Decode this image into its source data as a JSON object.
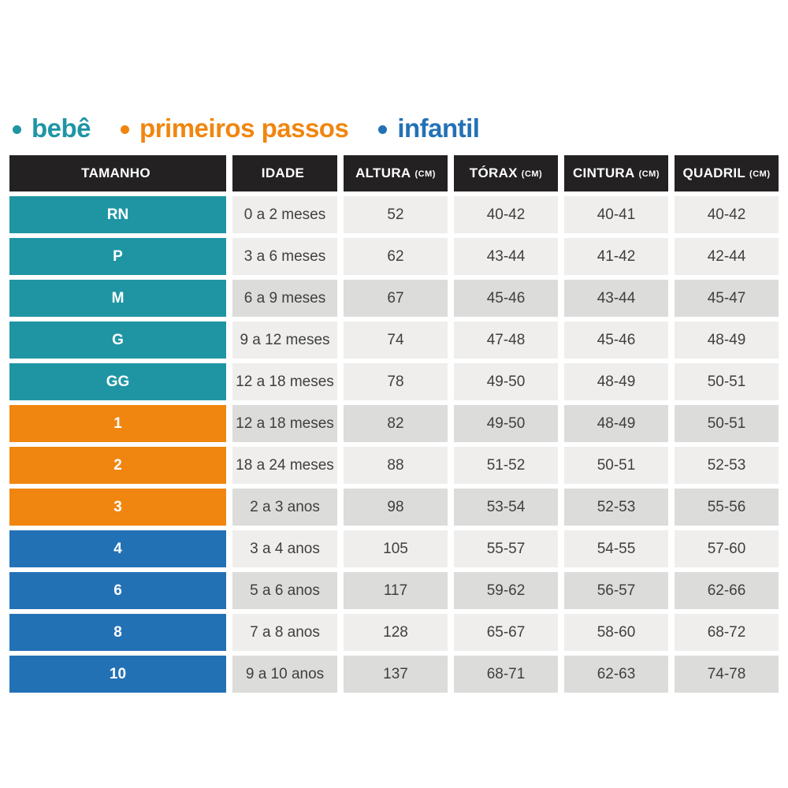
{
  "palette": {
    "bebe": "#1f95a4",
    "primeiros_passos": "#f0860f",
    "infantil": "#2371b5",
    "header_bg": "#242122",
    "cell_light": "#efeeec",
    "cell_dark": "#dcdcda",
    "text_dark": "#3f3f3f",
    "background": "#ffffff"
  },
  "legend": {
    "items": [
      {
        "label": "bebê",
        "color": "#1f95a4"
      },
      {
        "label": "primeiros passos",
        "color": "#f0860f"
      },
      {
        "label": "infantil",
        "color": "#2371b5"
      }
    ]
  },
  "table": {
    "columns": [
      {
        "label": "TAMANHO",
        "unit": ""
      },
      {
        "label": "IDADE",
        "unit": ""
      },
      {
        "label": "ALTURA",
        "unit": "(CM)"
      },
      {
        "label": "TÓRAX",
        "unit": "(CM)"
      },
      {
        "label": "CINTURA",
        "unit": "(CM)"
      },
      {
        "label": "QUADRIL",
        "unit": "(CM)"
      }
    ],
    "rows": [
      {
        "size": "RN",
        "group": "bebê",
        "age": "0 a 2 meses",
        "height": "52",
        "chest": "40-42",
        "waist": "40-41",
        "hip": "40-42"
      },
      {
        "size": "P",
        "group": "bebê",
        "age": "3 a 6 meses",
        "height": "62",
        "chest": "43-44",
        "waist": "41-42",
        "hip": "42-44"
      },
      {
        "size": "M",
        "group": "bebê",
        "age": "6 a 9 meses",
        "height": "67",
        "chest": "45-46",
        "waist": "43-44",
        "hip": "45-47"
      },
      {
        "size": "G",
        "group": "bebê",
        "age": "9 a 12 meses",
        "height": "74",
        "chest": "47-48",
        "waist": "45-46",
        "hip": "48-49"
      },
      {
        "size": "GG",
        "group": "bebê",
        "age": "12 a 18 meses",
        "height": "78",
        "chest": "49-50",
        "waist": "48-49",
        "hip": "50-51"
      },
      {
        "size": "1",
        "group": "primeiros passos",
        "age": "12 a 18 meses",
        "height": "82",
        "chest": "49-50",
        "waist": "48-49",
        "hip": "50-51"
      },
      {
        "size": "2",
        "group": "primeiros passos",
        "age": "18 a 24 meses",
        "height": "88",
        "chest": "51-52",
        "waist": "50-51",
        "hip": "52-53"
      },
      {
        "size": "3",
        "group": "primeiros passos",
        "age": "2 a 3 anos",
        "height": "98",
        "chest": "53-54",
        "waist": "52-53",
        "hip": "55-56"
      },
      {
        "size": "4",
        "group": "infantil",
        "age": "3 a 4 anos",
        "height": "105",
        "chest": "55-57",
        "waist": "54-55",
        "hip": "57-60"
      },
      {
        "size": "6",
        "group": "infantil",
        "age": "5 a 6 anos",
        "height": "117",
        "chest": "59-62",
        "waist": "56-57",
        "hip": "62-66"
      },
      {
        "size": "8",
        "group": "infantil",
        "age": "7 a 8 anos",
        "height": "128",
        "chest": "65-67",
        "waist": "58-60",
        "hip": "68-72"
      },
      {
        "size": "10",
        "group": "infantil",
        "age": "9 a 10 anos",
        "height": "137",
        "chest": "68-71",
        "waist": "62-63",
        "hip": "74-78"
      }
    ]
  },
  "chart_data": {
    "type": "table",
    "title": "",
    "headers": [
      "TAMANHO",
      "IDADE",
      "ALTURA (CM)",
      "TÓRAX (CM)",
      "CINTURA (CM)",
      "QUADRIL (CM)"
    ],
    "groups": [
      "bebê",
      "primeiros passos",
      "infantil"
    ],
    "rows": [
      [
        "RN",
        "0 a 2 meses",
        "52",
        "40-42",
        "40-41",
        "40-42"
      ],
      [
        "P",
        "3 a 6 meses",
        "62",
        "43-44",
        "41-42",
        "42-44"
      ],
      [
        "M",
        "6 a 9 meses",
        "67",
        "45-46",
        "43-44",
        "45-47"
      ],
      [
        "G",
        "9 a 12 meses",
        "74",
        "47-48",
        "45-46",
        "48-49"
      ],
      [
        "GG",
        "12 a 18 meses",
        "78",
        "49-50",
        "48-49",
        "50-51"
      ],
      [
        "1",
        "12 a 18 meses",
        "82",
        "49-50",
        "48-49",
        "50-51"
      ],
      [
        "2",
        "18 a 24 meses",
        "88",
        "51-52",
        "50-51",
        "52-53"
      ],
      [
        "3",
        "2 a 3 anos",
        "98",
        "53-54",
        "52-53",
        "55-56"
      ],
      [
        "4",
        "3 a 4 anos",
        "105",
        "55-57",
        "54-55",
        "57-60"
      ],
      [
        "6",
        "5 a 6 anos",
        "117",
        "59-62",
        "56-57",
        "62-66"
      ],
      [
        "8",
        "7 a 8 anos",
        "128",
        "65-67",
        "58-60",
        "68-72"
      ],
      [
        "10",
        "9 a 10 anos",
        "137",
        "68-71",
        "62-63",
        "74-78"
      ]
    ]
  }
}
